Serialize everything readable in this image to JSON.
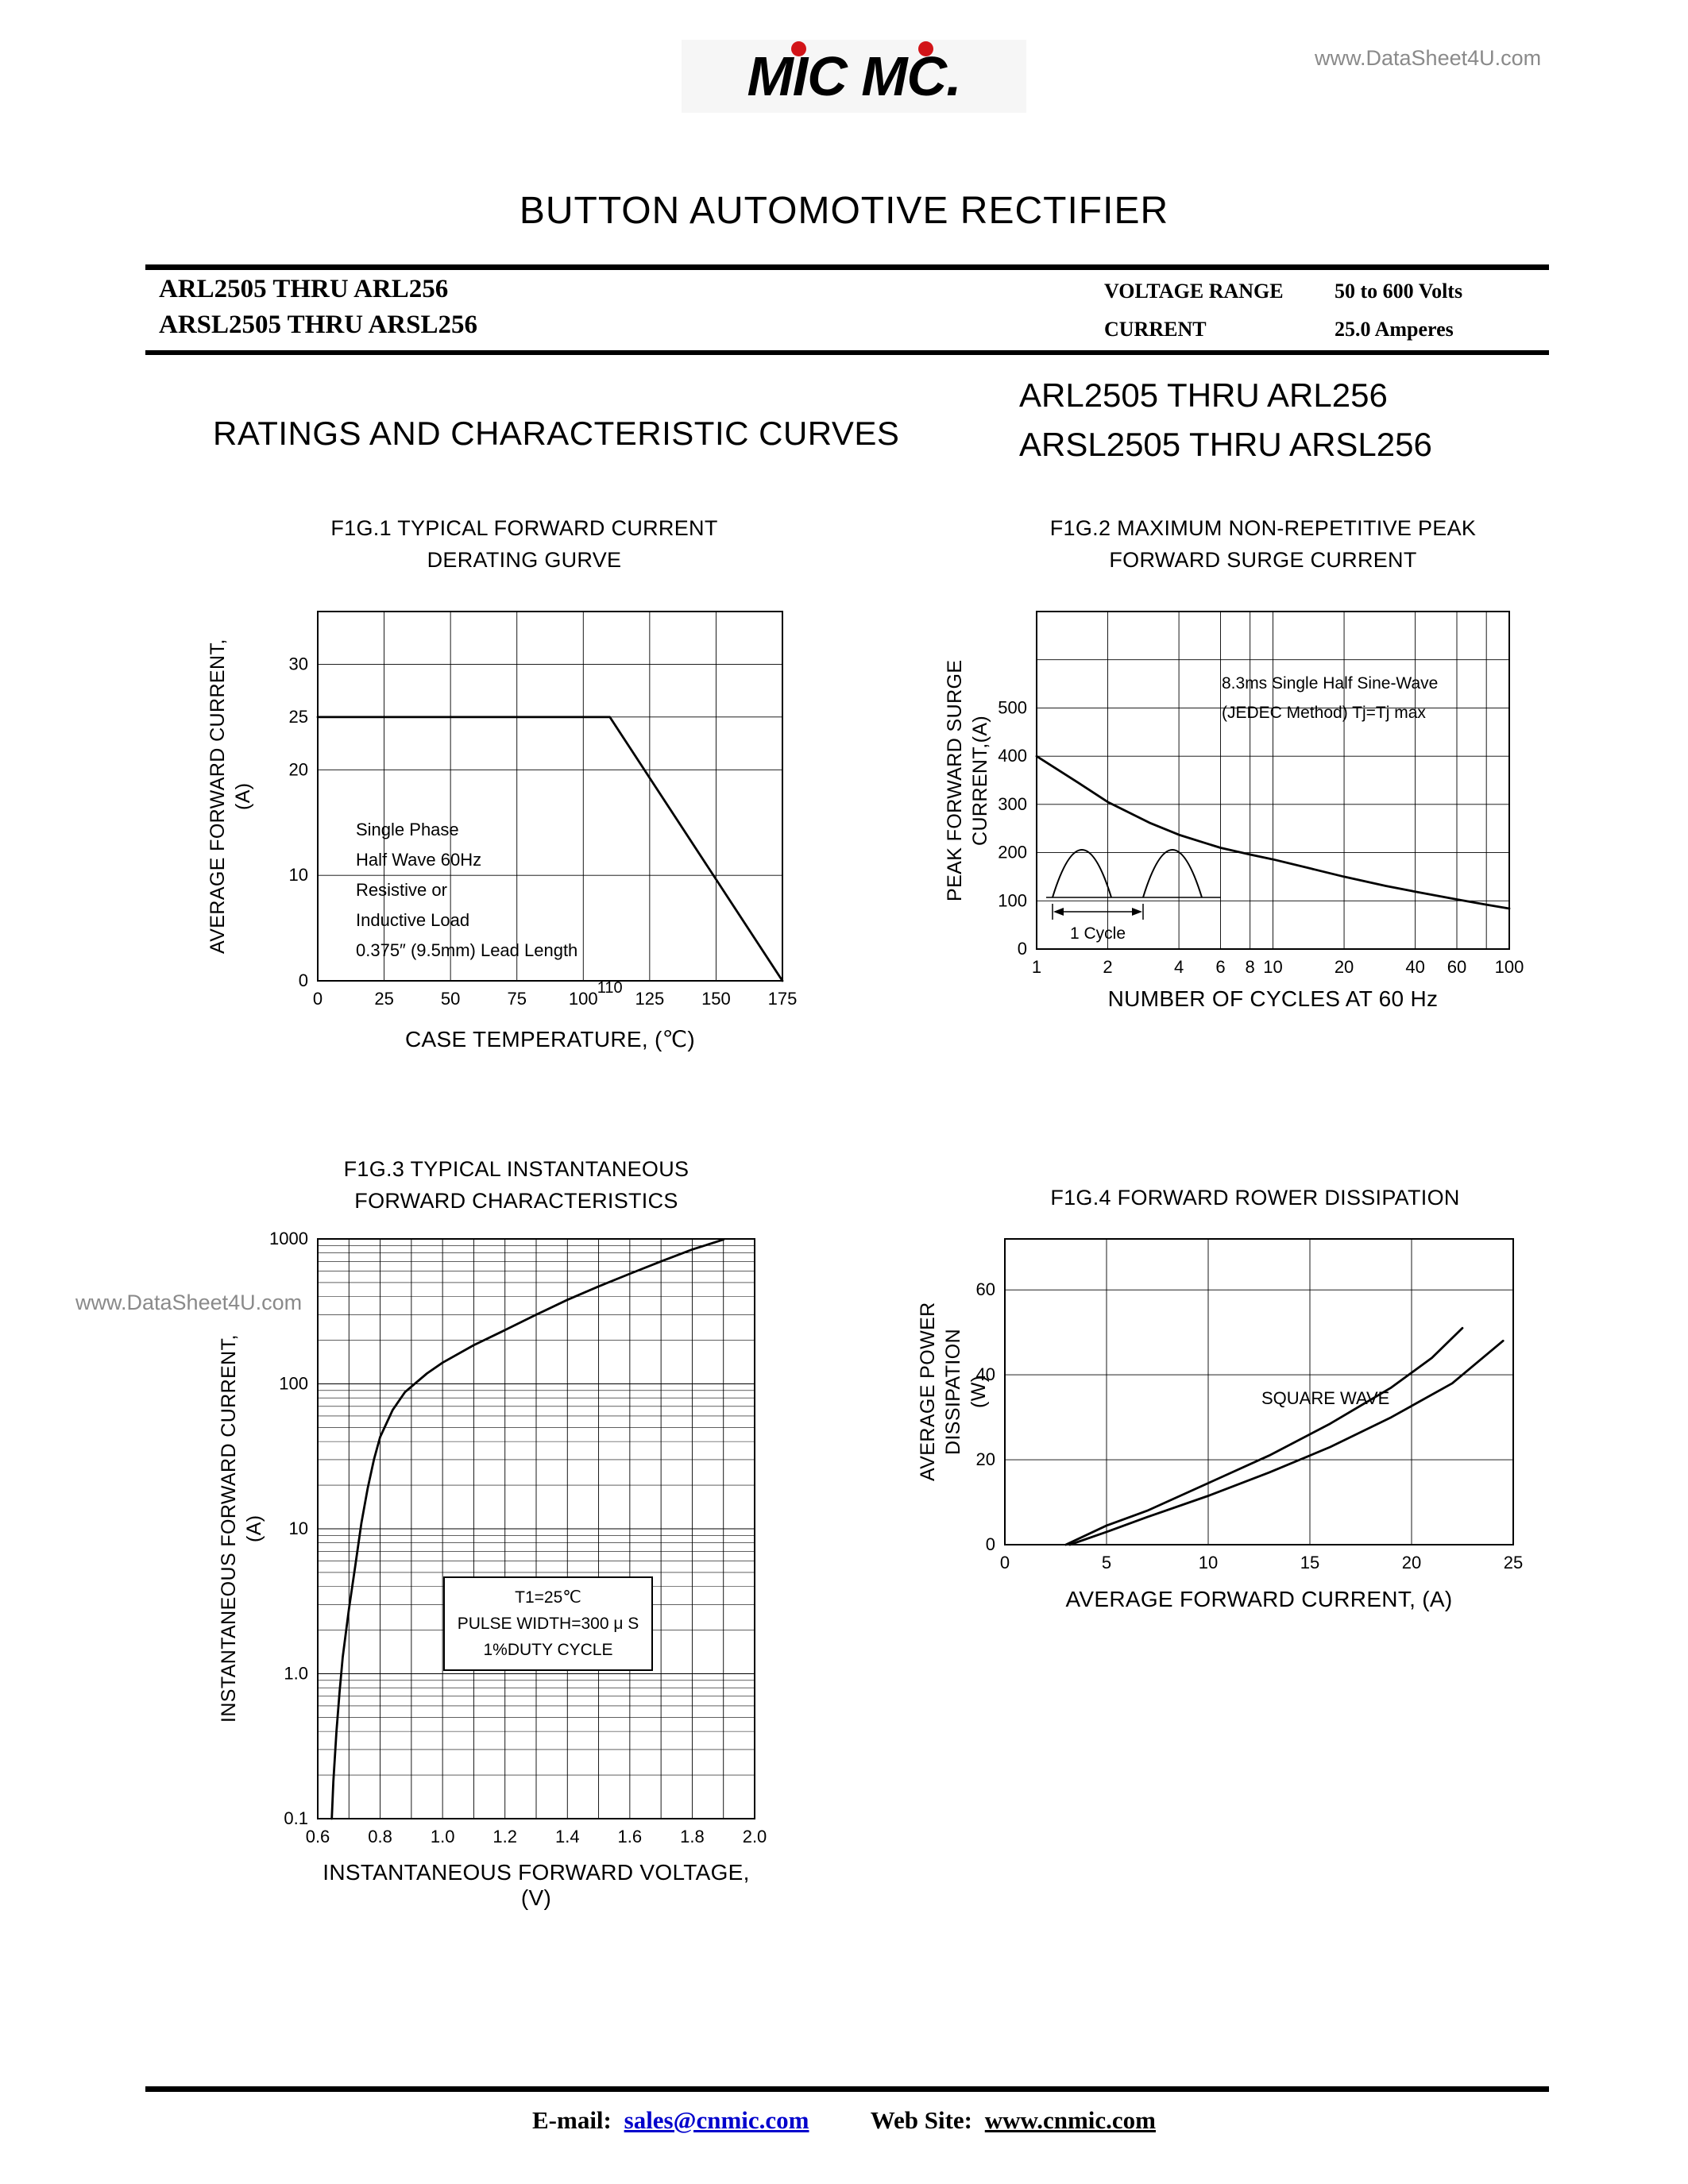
{
  "page": {
    "watermark_top": "www.DataSheet4U.com",
    "watermark_mid": "www.DataSheet4U.com",
    "logo_text": "MIC MC.",
    "title": "BUTTON AUTOMOTIVE RECTIFIER",
    "header": {
      "part_line1": "ARL2505 THRU ARL256",
      "part_line2": "ARSL2505 THRU ARSL256",
      "voltage_range_label": "VOLTAGE RANGE",
      "voltage_range_value": "50 to 600 Volts",
      "current_label": "CURRENT",
      "current_value": "25.0 Amperes"
    },
    "section": {
      "heading": "RATINGS AND CHARACTERISTIC CURVES",
      "part_line1": "ARL2505 THRU ARL256",
      "part_line2": "ARSL2505 THRU ARSL256"
    },
    "footer": {
      "email_label": "E-mail:",
      "email_value": "sales@cnmic.com",
      "web_label": "Web Site:",
      "web_value": "www.cnmic.com"
    },
    "colors": {
      "logo_dot": "#d21418",
      "link_blue": "#0000cc",
      "watermark_gray": "#8a8a8a"
    }
  },
  "chart_data": [
    {
      "id": "fig1",
      "type": "line",
      "title": "F1G.1  TYPICAL FORWARD CURRENT\nDERATING GURVE",
      "xlabel": "CASE TEMPERATURE, (℃)",
      "ylabel": "AVERAGE FORWARD CURRENT,\n(A)",
      "x_axis": {
        "type": "linear",
        "min": 0,
        "max": 175
      },
      "y_axis": {
        "type": "linear",
        "min": 0,
        "max": 35
      },
      "x_ticks": [
        {
          "v": 0,
          "label": "0"
        },
        {
          "v": 25,
          "label": "25"
        },
        {
          "v": 50,
          "label": "50"
        },
        {
          "v": 75,
          "label": "75"
        },
        {
          "v": 100,
          "label": "100"
        },
        {
          "v": 125,
          "label": "125"
        },
        {
          "v": 150,
          "label": "150"
        },
        {
          "v": 175,
          "label": "175"
        }
      ],
      "extra_x_ticks": [
        {
          "v": 110,
          "label": "110"
        }
      ],
      "y_ticks": [
        {
          "v": 30,
          "label": "30"
        },
        {
          "v": 25,
          "label": "25"
        },
        {
          "v": 20,
          "label": "20"
        },
        {
          "v": 10,
          "label": "10"
        },
        {
          "v": 0,
          "label": "0"
        }
      ],
      "x_grid": [
        25,
        50,
        75,
        100,
        125,
        150
      ],
      "y_grid": [
        10,
        20,
        25,
        30
      ],
      "series": [
        {
          "name": "derating-curve",
          "points": [
            [
              0,
              25
            ],
            [
              110,
              25
            ],
            [
              175,
              0
            ]
          ]
        }
      ],
      "annotation": "Single Phase\nHalf Wave 60Hz\nResistive or\nInductive Load\n0.375″ (9.5mm) Lead Length"
    },
    {
      "id": "fig2",
      "type": "line",
      "title": "F1G.2  MAXIMUM NON-REPETITIVE PEAK\nFORWARD SURGE CURRENT",
      "xlabel": "NUMBER OF CYCLES AT 60 Hz",
      "ylabel": "PEAK FORWARD SURGE\nCURRENT,(A)",
      "x_axis": {
        "type": "log",
        "min": 1,
        "max": 100
      },
      "y_axis": {
        "type": "linear",
        "min": 0,
        "max": 700
      },
      "x_ticks": [
        {
          "v": 1,
          "label": "1"
        },
        {
          "v": 2,
          "label": "2"
        },
        {
          "v": 4,
          "label": "4"
        },
        {
          "v": 6,
          "label": "6"
        },
        {
          "v": 8,
          "label": "8"
        },
        {
          "v": 10,
          "label": "10"
        },
        {
          "v": 20,
          "label": "20"
        },
        {
          "v": 40,
          "label": "40"
        },
        {
          "v": 60,
          "label": "60"
        },
        {
          "v": 100,
          "label": "100"
        }
      ],
      "y_ticks": [
        {
          "v": 500,
          "label": "500"
        },
        {
          "v": 400,
          "label": "400"
        },
        {
          "v": 300,
          "label": "300"
        },
        {
          "v": 200,
          "label": "200"
        },
        {
          "v": 100,
          "label": "100"
        },
        {
          "v": 0,
          "label": "0"
        }
      ],
      "x_grid": [
        2,
        4,
        6,
        8,
        10,
        20,
        40,
        60,
        80
      ],
      "y_grid": [
        100,
        200,
        300,
        400,
        500,
        600
      ],
      "series": [
        {
          "name": "surge-current",
          "points": [
            [
              1,
              400
            ],
            [
              1.5,
              345
            ],
            [
              2,
              305
            ],
            [
              3,
              262
            ],
            [
              4,
              237
            ],
            [
              5,
              222
            ],
            [
              6,
              210
            ],
            [
              8,
              196
            ],
            [
              10,
              186
            ],
            [
              15,
              165
            ],
            [
              20,
              150
            ],
            [
              30,
              131
            ],
            [
              40,
              119
            ],
            [
              60,
              103
            ],
            [
              80,
              92
            ],
            [
              100,
              84
            ]
          ]
        }
      ],
      "annotation": "8.3ms Single Half Sine-Wave\n(JEDEC Method) Tj=Tj max",
      "inset_label": "1 Cycle"
    },
    {
      "id": "fig3",
      "type": "line",
      "title": "F1G.3  TYPICAL INSTANTANEOUS\nFORWARD CHARACTERISTICS",
      "xlabel": "INSTANTANEOUS FORWARD VOLTAGE,(V)",
      "ylabel": "INSTANTANEOUS FORWARD CURRENT,\n(A)",
      "x_axis": {
        "type": "linear",
        "min": 0.6,
        "max": 2.0
      },
      "y_axis": {
        "type": "log",
        "min": 0.1,
        "max": 1000
      },
      "y_minor_log": true,
      "x_ticks": [
        {
          "v": 0.6,
          "label": "0.6"
        },
        {
          "v": 0.8,
          "label": "0.8"
        },
        {
          "v": 1.0,
          "label": "1.0"
        },
        {
          "v": 1.2,
          "label": "1.2"
        },
        {
          "v": 1.4,
          "label": "1.4"
        },
        {
          "v": 1.6,
          "label": "1.6"
        },
        {
          "v": 1.8,
          "label": "1.8"
        },
        {
          "v": 2.0,
          "label": "2.0"
        }
      ],
      "y_ticks": [
        {
          "v": 1000,
          "label": "1000"
        },
        {
          "v": 100,
          "label": "100"
        },
        {
          "v": 10,
          "label": "10"
        },
        {
          "v": 1,
          "label": "1.0"
        },
        {
          "v": 0.1,
          "label": "0.1"
        }
      ],
      "x_grid": [
        0.7,
        0.8,
        0.9,
        1.0,
        1.1,
        1.2,
        1.3,
        1.4,
        1.5,
        1.6,
        1.7,
        1.8,
        1.9
      ],
      "y_grid": [
        1,
        10,
        100
      ],
      "series": [
        {
          "name": "forward-characteristic",
          "points": [
            [
              0.645,
              0.1
            ],
            [
              0.65,
              0.18
            ],
            [
              0.66,
              0.4
            ],
            [
              0.67,
              0.75
            ],
            [
              0.68,
              1.3
            ],
            [
              0.7,
              2.8
            ],
            [
              0.72,
              5.5
            ],
            [
              0.74,
              11
            ],
            [
              0.76,
              19
            ],
            [
              0.78,
              30
            ],
            [
              0.8,
              43
            ],
            [
              0.84,
              66
            ],
            [
              0.88,
              88
            ],
            [
              0.95,
              118
            ],
            [
              1.0,
              140
            ],
            [
              1.1,
              185
            ],
            [
              1.2,
              235
            ],
            [
              1.3,
              300
            ],
            [
              1.4,
              380
            ],
            [
              1.5,
              470
            ],
            [
              1.6,
              575
            ],
            [
              1.7,
              700
            ],
            [
              1.8,
              845
            ],
            [
              1.9,
              990
            ]
          ]
        }
      ],
      "annotation": "T1=25℃\nPULSE WIDTH=300 μ S\n1%DUTY CYCLE"
    },
    {
      "id": "fig4",
      "type": "line",
      "title": "F1G.4  FORWARD ROWER DISSIPATION",
      "xlabel": "AVERAGE FORWARD CURRENT, (A)",
      "ylabel": "AVERAGE POWER DISSIPATION\n(W)",
      "x_axis": {
        "type": "linear",
        "min": 0,
        "max": 25
      },
      "y_axis": {
        "type": "linear",
        "min": 0,
        "max": 72
      },
      "x_ticks": [
        {
          "v": 0,
          "label": "0"
        },
        {
          "v": 5,
          "label": "5"
        },
        {
          "v": 10,
          "label": "10"
        },
        {
          "v": 15,
          "label": "15"
        },
        {
          "v": 20,
          "label": "20"
        },
        {
          "v": 25,
          "label": "25"
        }
      ],
      "y_ticks": [
        {
          "v": 60,
          "label": "60"
        },
        {
          "v": 40,
          "label": "40"
        },
        {
          "v": 20,
          "label": "20"
        },
        {
          "v": 0,
          "label": "0"
        }
      ],
      "x_grid": [
        5,
        10,
        15,
        20
      ],
      "y_grid": [
        20,
        40,
        60
      ],
      "series": [
        {
          "name": "square-wave",
          "points": [
            [
              3,
              0
            ],
            [
              5,
              4.5
            ],
            [
              7,
              8
            ],
            [
              10,
              14.5
            ],
            [
              13,
              21
            ],
            [
              16,
              28.5
            ],
            [
              19,
              37
            ],
            [
              21,
              44
            ],
            [
              22.5,
              51
            ]
          ]
        },
        {
          "name": "sine-wave",
          "points": [
            [
              3.2,
              0
            ],
            [
              5,
              3
            ],
            [
              7,
              6.5
            ],
            [
              10,
              11.5
            ],
            [
              13,
              17
            ],
            [
              16,
              23
            ],
            [
              19,
              30
            ],
            [
              22,
              38
            ],
            [
              24.5,
              48
            ]
          ]
        }
      ],
      "annotation": "SQUARE WAVE"
    }
  ]
}
